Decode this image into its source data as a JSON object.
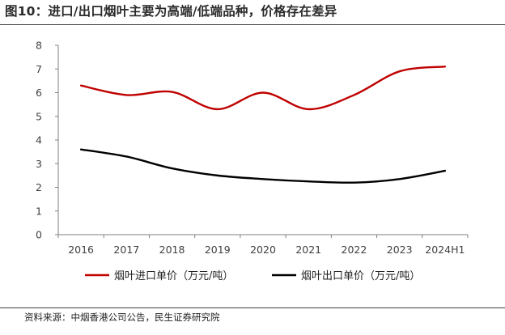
{
  "figure": {
    "title": "图10：进口/出口烟叶主要为高端/低端品种，价格存在差异",
    "source": "资料来源：中烟香港公司公告，民生证券研究院"
  },
  "colors": {
    "series_1": "#c00000",
    "series_2": "#000000",
    "axis": "#808080",
    "text": "#404040"
  },
  "chart_data": {
    "type": "line",
    "title": "",
    "xlabel": "",
    "ylabel": "",
    "categories": [
      "2016",
      "2017",
      "2018",
      "2019",
      "2020",
      "2021",
      "2022",
      "2023",
      "2024H1"
    ],
    "ylim": [
      0,
      8
    ],
    "yticks": [
      "0",
      "1",
      "2",
      "3",
      "4",
      "5",
      "6",
      "7",
      "8"
    ],
    "grid": false,
    "legend_position": "bottom",
    "series": [
      {
        "name": "烟叶进口单价（万元/吨）",
        "values": [
          6.3,
          5.9,
          6.03,
          5.3,
          6.0,
          5.3,
          5.9,
          6.9,
          7.1
        ]
      },
      {
        "name": "烟叶出口单价（万元/吨）",
        "values": [
          3.6,
          3.3,
          2.8,
          2.5,
          2.35,
          2.25,
          2.2,
          2.35,
          2.7
        ]
      }
    ]
  }
}
